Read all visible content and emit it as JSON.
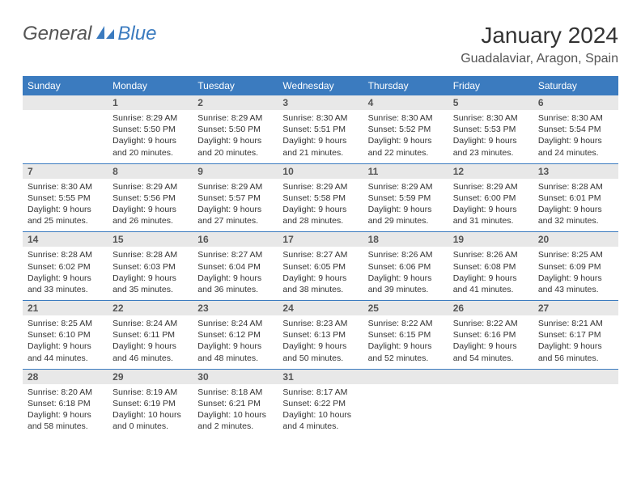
{
  "logo": {
    "general": "General",
    "blue": "Blue"
  },
  "header": {
    "title": "January 2024",
    "location": "Guadalaviar, Aragon, Spain"
  },
  "colors": {
    "header_bg": "#3b7bbf",
    "daynum_bg": "#e8e8e8",
    "row_border": "#3b7bbf"
  },
  "days_of_week": [
    "Sunday",
    "Monday",
    "Tuesday",
    "Wednesday",
    "Thursday",
    "Friday",
    "Saturday"
  ],
  "weeks": [
    [
      {
        "n": "",
        "sunrise": "",
        "sunset": "",
        "daylight": ""
      },
      {
        "n": "1",
        "sunrise": "Sunrise: 8:29 AM",
        "sunset": "Sunset: 5:50 PM",
        "daylight": "Daylight: 9 hours and 20 minutes."
      },
      {
        "n": "2",
        "sunrise": "Sunrise: 8:29 AM",
        "sunset": "Sunset: 5:50 PM",
        "daylight": "Daylight: 9 hours and 20 minutes."
      },
      {
        "n": "3",
        "sunrise": "Sunrise: 8:30 AM",
        "sunset": "Sunset: 5:51 PM",
        "daylight": "Daylight: 9 hours and 21 minutes."
      },
      {
        "n": "4",
        "sunrise": "Sunrise: 8:30 AM",
        "sunset": "Sunset: 5:52 PM",
        "daylight": "Daylight: 9 hours and 22 minutes."
      },
      {
        "n": "5",
        "sunrise": "Sunrise: 8:30 AM",
        "sunset": "Sunset: 5:53 PM",
        "daylight": "Daylight: 9 hours and 23 minutes."
      },
      {
        "n": "6",
        "sunrise": "Sunrise: 8:30 AM",
        "sunset": "Sunset: 5:54 PM",
        "daylight": "Daylight: 9 hours and 24 minutes."
      }
    ],
    [
      {
        "n": "7",
        "sunrise": "Sunrise: 8:30 AM",
        "sunset": "Sunset: 5:55 PM",
        "daylight": "Daylight: 9 hours and 25 minutes."
      },
      {
        "n": "8",
        "sunrise": "Sunrise: 8:29 AM",
        "sunset": "Sunset: 5:56 PM",
        "daylight": "Daylight: 9 hours and 26 minutes."
      },
      {
        "n": "9",
        "sunrise": "Sunrise: 8:29 AM",
        "sunset": "Sunset: 5:57 PM",
        "daylight": "Daylight: 9 hours and 27 minutes."
      },
      {
        "n": "10",
        "sunrise": "Sunrise: 8:29 AM",
        "sunset": "Sunset: 5:58 PM",
        "daylight": "Daylight: 9 hours and 28 minutes."
      },
      {
        "n": "11",
        "sunrise": "Sunrise: 8:29 AM",
        "sunset": "Sunset: 5:59 PM",
        "daylight": "Daylight: 9 hours and 29 minutes."
      },
      {
        "n": "12",
        "sunrise": "Sunrise: 8:29 AM",
        "sunset": "Sunset: 6:00 PM",
        "daylight": "Daylight: 9 hours and 31 minutes."
      },
      {
        "n": "13",
        "sunrise": "Sunrise: 8:28 AM",
        "sunset": "Sunset: 6:01 PM",
        "daylight": "Daylight: 9 hours and 32 minutes."
      }
    ],
    [
      {
        "n": "14",
        "sunrise": "Sunrise: 8:28 AM",
        "sunset": "Sunset: 6:02 PM",
        "daylight": "Daylight: 9 hours and 33 minutes."
      },
      {
        "n": "15",
        "sunrise": "Sunrise: 8:28 AM",
        "sunset": "Sunset: 6:03 PM",
        "daylight": "Daylight: 9 hours and 35 minutes."
      },
      {
        "n": "16",
        "sunrise": "Sunrise: 8:27 AM",
        "sunset": "Sunset: 6:04 PM",
        "daylight": "Daylight: 9 hours and 36 minutes."
      },
      {
        "n": "17",
        "sunrise": "Sunrise: 8:27 AM",
        "sunset": "Sunset: 6:05 PM",
        "daylight": "Daylight: 9 hours and 38 minutes."
      },
      {
        "n": "18",
        "sunrise": "Sunrise: 8:26 AM",
        "sunset": "Sunset: 6:06 PM",
        "daylight": "Daylight: 9 hours and 39 minutes."
      },
      {
        "n": "19",
        "sunrise": "Sunrise: 8:26 AM",
        "sunset": "Sunset: 6:08 PM",
        "daylight": "Daylight: 9 hours and 41 minutes."
      },
      {
        "n": "20",
        "sunrise": "Sunrise: 8:25 AM",
        "sunset": "Sunset: 6:09 PM",
        "daylight": "Daylight: 9 hours and 43 minutes."
      }
    ],
    [
      {
        "n": "21",
        "sunrise": "Sunrise: 8:25 AM",
        "sunset": "Sunset: 6:10 PM",
        "daylight": "Daylight: 9 hours and 44 minutes."
      },
      {
        "n": "22",
        "sunrise": "Sunrise: 8:24 AM",
        "sunset": "Sunset: 6:11 PM",
        "daylight": "Daylight: 9 hours and 46 minutes."
      },
      {
        "n": "23",
        "sunrise": "Sunrise: 8:24 AM",
        "sunset": "Sunset: 6:12 PM",
        "daylight": "Daylight: 9 hours and 48 minutes."
      },
      {
        "n": "24",
        "sunrise": "Sunrise: 8:23 AM",
        "sunset": "Sunset: 6:13 PM",
        "daylight": "Daylight: 9 hours and 50 minutes."
      },
      {
        "n": "25",
        "sunrise": "Sunrise: 8:22 AM",
        "sunset": "Sunset: 6:15 PM",
        "daylight": "Daylight: 9 hours and 52 minutes."
      },
      {
        "n": "26",
        "sunrise": "Sunrise: 8:22 AM",
        "sunset": "Sunset: 6:16 PM",
        "daylight": "Daylight: 9 hours and 54 minutes."
      },
      {
        "n": "27",
        "sunrise": "Sunrise: 8:21 AM",
        "sunset": "Sunset: 6:17 PM",
        "daylight": "Daylight: 9 hours and 56 minutes."
      }
    ],
    [
      {
        "n": "28",
        "sunrise": "Sunrise: 8:20 AM",
        "sunset": "Sunset: 6:18 PM",
        "daylight": "Daylight: 9 hours and 58 minutes."
      },
      {
        "n": "29",
        "sunrise": "Sunrise: 8:19 AM",
        "sunset": "Sunset: 6:19 PM",
        "daylight": "Daylight: 10 hours and 0 minutes."
      },
      {
        "n": "30",
        "sunrise": "Sunrise: 8:18 AM",
        "sunset": "Sunset: 6:21 PM",
        "daylight": "Daylight: 10 hours and 2 minutes."
      },
      {
        "n": "31",
        "sunrise": "Sunrise: 8:17 AM",
        "sunset": "Sunset: 6:22 PM",
        "daylight": "Daylight: 10 hours and 4 minutes."
      },
      {
        "n": "",
        "sunrise": "",
        "sunset": "",
        "daylight": ""
      },
      {
        "n": "",
        "sunrise": "",
        "sunset": "",
        "daylight": ""
      },
      {
        "n": "",
        "sunrise": "",
        "sunset": "",
        "daylight": ""
      }
    ]
  ]
}
